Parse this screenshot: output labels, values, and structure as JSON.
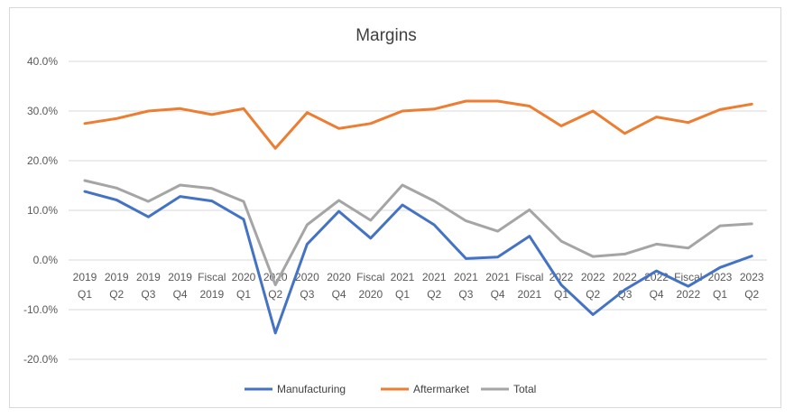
{
  "chart_data": {
    "type": "line",
    "title": "Margins",
    "xlabel": "",
    "ylabel": "",
    "ylim": [
      -0.2,
      0.4
    ],
    "yticks": [
      -0.2,
      -0.1,
      0.0,
      0.1,
      0.2,
      0.3,
      0.4
    ],
    "ytick_labels": [
      "-20.0%",
      "-10.0%",
      "0.0%",
      "10.0%",
      "20.0%",
      "30.0%",
      "40.0%"
    ],
    "grid": true,
    "legend_position": "bottom",
    "categories": [
      [
        "2019",
        "Q1"
      ],
      [
        "2019",
        "Q2"
      ],
      [
        "2019",
        "Q3"
      ],
      [
        "2019",
        "Q4"
      ],
      [
        "Fiscal",
        "2019"
      ],
      [
        "2020",
        "Q1"
      ],
      [
        "2020",
        "Q2"
      ],
      [
        "2020",
        "Q3"
      ],
      [
        "2020",
        "Q4"
      ],
      [
        "Fiscal",
        "2020"
      ],
      [
        "2021",
        "Q1"
      ],
      [
        "2021",
        "Q2"
      ],
      [
        "2021",
        "Q3"
      ],
      [
        "2021",
        "Q4"
      ],
      [
        "Fiscal",
        "2021"
      ],
      [
        "2022",
        "Q1"
      ],
      [
        "2022",
        "Q2"
      ],
      [
        "2022",
        "Q3"
      ],
      [
        "2022",
        "Q4"
      ],
      [
        "Fiscal",
        "2022"
      ],
      [
        "2023",
        "Q1"
      ],
      [
        "2023",
        "Q2"
      ]
    ],
    "series": [
      {
        "name": "Manufacturing",
        "color": "#4472c4",
        "values": [
          0.138,
          0.121,
          0.087,
          0.128,
          0.119,
          0.082,
          -0.147,
          0.032,
          0.098,
          0.044,
          0.111,
          0.071,
          0.003,
          0.006,
          0.048,
          -0.05,
          -0.11,
          -0.06,
          -0.022,
          -0.053,
          -0.015,
          0.008
        ]
      },
      {
        "name": "Aftermarket",
        "color": "#ed7d31",
        "values": [
          0.275,
          0.285,
          0.3,
          0.305,
          0.293,
          0.305,
          0.225,
          0.297,
          0.265,
          0.275,
          0.3,
          0.304,
          0.32,
          0.32,
          0.31,
          0.27,
          0.3,
          0.255,
          0.288,
          0.277,
          0.303,
          0.314
        ]
      },
      {
        "name": "Total",
        "color": "#a5a5a5",
        "values": [
          0.16,
          0.145,
          0.118,
          0.151,
          0.144,
          0.118,
          -0.05,
          0.071,
          0.12,
          0.08,
          0.151,
          0.119,
          0.079,
          0.058,
          0.101,
          0.038,
          0.007,
          0.012,
          0.032,
          0.024,
          0.069,
          0.073
        ]
      }
    ]
  }
}
